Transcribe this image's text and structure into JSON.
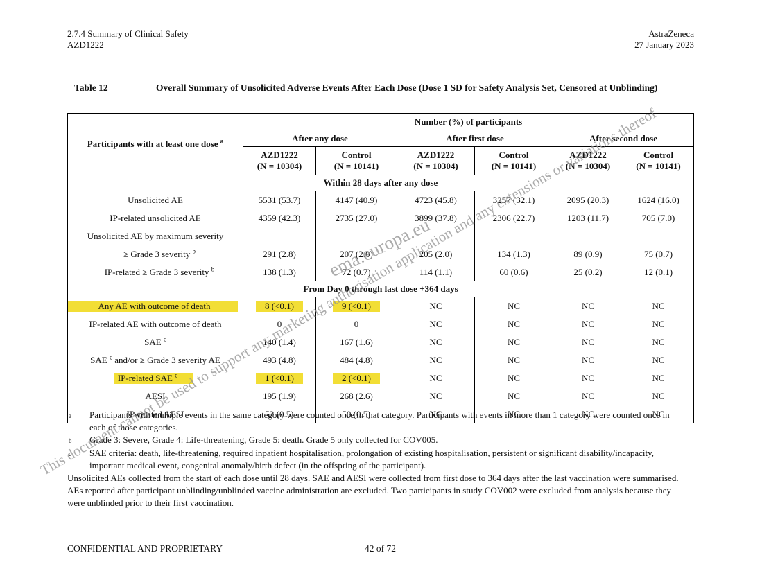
{
  "colors": {
    "highlight": "#f2de35",
    "watermark": "#949494",
    "text": "#111111",
    "border": "#000000"
  },
  "page_header": {
    "left_line1": "2.7.4 Summary of Clinical Safety",
    "left_line2": "AZD1222",
    "right_line1": "AstraZeneca",
    "right_line2": "27 January 2023"
  },
  "table_title": {
    "label": "Table 12",
    "text": "Overall Summary of Unsolicited Adverse Events After Each Dose (Dose 1 SD for Safety Analysis Set, Censored at Unblinding)"
  },
  "table": {
    "corner_header": {
      "text": "Participants with at least one dose",
      "sup": "a"
    },
    "spanner": "Number (%) of participants",
    "dose_groups": [
      "After any dose",
      "After first dose",
      "After second dose"
    ],
    "col_headers": [
      {
        "arm": "AZD1222",
        "n": "(N = 10304)"
      },
      {
        "arm": "Control",
        "n": "(N = 10141)"
      },
      {
        "arm": "AZD1222",
        "n": "(N = 10304)"
      },
      {
        "arm": "Control",
        "n": "(N = 10141)"
      },
      {
        "arm": "AZD1222",
        "n": "(N = 10304)"
      },
      {
        "arm": "Control",
        "n": "(N = 10141)"
      }
    ],
    "sections": [
      {
        "title": "Within 28 days after any dose",
        "rows": [
          {
            "label": "Unsolicited AE",
            "values": [
              "5531 (53.7)",
              "4147 (40.9)",
              "4723 (45.8)",
              "3257 (32.1)",
              "2095 (20.3)",
              "1624 (16.0)"
            ]
          },
          {
            "label": "IP-related unsolicited AE",
            "values": [
              "4359 (42.3)",
              "2735 (27.0)",
              "3899 (37.8)",
              "2306 (22.7)",
              "1203 (11.7)",
              "705 (7.0)"
            ]
          },
          {
            "label": "Unsolicited AE by maximum severity",
            "values": [
              "",
              "",
              "",
              "",
              "",
              ""
            ]
          },
          {
            "label": "≥ Grade 3 severity",
            "sup": "b",
            "indent": true,
            "values": [
              "291 (2.8)",
              "207 (2.0)",
              "205 (2.0)",
              "134 (1.3)",
              "89 (0.9)",
              "75 (0.7)"
            ]
          },
          {
            "label": "IP-related ≥ Grade 3 severity",
            "sup": "b",
            "indent": true,
            "values": [
              "138 (1.3)",
              "72 (0.7)",
              "114 (1.1)",
              "60 (0.6)",
              "25 (0.2)",
              "12 (0.1)"
            ]
          }
        ]
      },
      {
        "title": "From Day 0 through last dose +364 days",
        "rows": [
          {
            "label": "Any AE with outcome of death",
            "highlight_label": "wide",
            "highlight_values": [
              0,
              1
            ],
            "values": [
              "8 (<0.1)",
              "9 (<0.1)",
              "NC",
              "NC",
              "NC",
              "NC"
            ]
          },
          {
            "label": "IP-related AE with outcome of death",
            "values": [
              "0",
              "0",
              "NC",
              "NC",
              "NC",
              "NC"
            ]
          },
          {
            "label": "SAE",
            "sup": "c",
            "values": [
              "140 (1.4)",
              "167 (1.6)",
              "NC",
              "NC",
              "NC",
              "NC"
            ]
          },
          {
            "label": "SAE",
            "sup": "c",
            "label_after": " and/or ≥ Grade 3 severity AE",
            "values": [
              "493 (4.8)",
              "484 (4.8)",
              "NC",
              "NC",
              "NC",
              "NC"
            ]
          },
          {
            "label": "IP-related SAE",
            "sup": "c",
            "highlight_label": "text",
            "highlight_values": [
              0,
              1
            ],
            "values": [
              "1 (<0.1)",
              "2 (<0.1)",
              "NC",
              "NC",
              "NC",
              "NC"
            ]
          },
          {
            "label": "AESI",
            "values": [
              "195 (1.9)",
              "268 (2.6)",
              "NC",
              "NC",
              "NC",
              "NC"
            ]
          },
          {
            "label": "IP-related AESI",
            "values": [
              "52 (0.5)",
              "50 (0.5)",
              "NC",
              "NC",
              "NC",
              "NC"
            ]
          }
        ]
      }
    ]
  },
  "footnotes": [
    {
      "marker": "a",
      "text": "Participants with multiple events in the same category were counted once in that category. Participants with events in more than 1 category were counted once in each of those categories."
    },
    {
      "marker": "b",
      "text": "Grade 3: Severe, Grade 4: Life-threatening, Grade 5: death. Grade 5 only collected for COV005."
    },
    {
      "marker": "c",
      "text": "SAE criteria: death, life-threatening, required inpatient hospitalisation, prolongation of existing hospitalisation, persistent or significant disability/incapacity, important medical event, congenital anomaly/birth defect (in the offspring of the participant)."
    }
  ],
  "notes_paragraph": "Unsolicited AEs collected from the start of each dose until 28 days. SAE and AESI were collected from first dose to 364 days after the last vaccination were summarised. AEs reported after participant unblinding/unblinded vaccine administration are excluded. Two participants in study COV002 were excluded from analysis because they were unblinded prior to their first vaccination.",
  "footer": {
    "left": "CONFIDENTIAL AND PROPRIETARY",
    "page": "42 of 72"
  },
  "watermark": {
    "line1": "This document cannot be used to support any marketing authorisation application and any extensions or variations thereof",
    "line2": "ema.europa.eu"
  }
}
